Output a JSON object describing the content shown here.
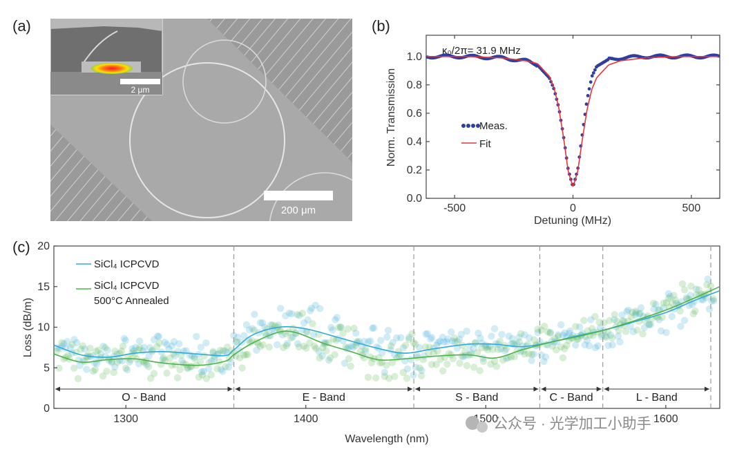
{
  "panel_labels": {
    "a": "(a)",
    "b": "(b)",
    "c": "(c)"
  },
  "panel_a": {
    "inset_scale_label": "2 μm",
    "scale_label": "200 μm"
  },
  "chart_data": [
    {
      "panel": "b",
      "type": "line",
      "annotation": "κ₀/2π= 31.9 MHz",
      "xlabel": "Detuning (MHz)",
      "ylabel": "Norm. Transmission",
      "xlim": [
        -620,
        620
      ],
      "ylim": [
        0.0,
        1.15
      ],
      "xticks": [
        -500,
        0,
        500
      ],
      "yticks": [
        0.0,
        0.2,
        0.4,
        0.6,
        0.8,
        1.0
      ],
      "legend": [
        "Meas.",
        "Fit"
      ],
      "series": [
        {
          "name": "Meas.",
          "style": "dots",
          "color": "#2e3f9e",
          "x": [
            -600,
            -450,
            -300,
            -200,
            -150,
            -100,
            -80,
            -60,
            -40,
            -20,
            0,
            20,
            40,
            60,
            80,
            100,
            150,
            200,
            300,
            450,
            600
          ],
          "y": [
            1.0,
            1.0,
            0.99,
            0.97,
            0.94,
            0.85,
            0.77,
            0.64,
            0.44,
            0.2,
            0.08,
            0.2,
            0.46,
            0.7,
            0.86,
            0.93,
            0.98,
            0.99,
            1.0,
            1.0,
            1.0
          ]
        },
        {
          "name": "Fit",
          "style": "line",
          "color": "#e8323c",
          "x": [
            -600,
            -450,
            -300,
            -200,
            -150,
            -100,
            -80,
            -60,
            -40,
            -20,
            0,
            20,
            40,
            60,
            80,
            100,
            150,
            200,
            300,
            450,
            600
          ],
          "y": [
            1.0,
            1.0,
            0.99,
            0.97,
            0.95,
            0.86,
            0.78,
            0.64,
            0.43,
            0.19,
            0.08,
            0.19,
            0.42,
            0.63,
            0.77,
            0.85,
            0.94,
            0.97,
            0.99,
            1.0,
            1.0
          ]
        }
      ]
    },
    {
      "panel": "c",
      "type": "scatter",
      "xlabel": "Wavelength (nm)",
      "ylabel": "Loss (dB/m)",
      "xlim": [
        1260,
        1630
      ],
      "ylim": [
        0,
        20
      ],
      "xticks": [
        1300,
        1400,
        1500,
        1600
      ],
      "yticks": [
        0,
        5,
        10,
        15,
        20
      ],
      "legend": [
        "SiCl₄ ICPCVD",
        "SiCl₄ ICPCVD",
        "500°C Annealed"
      ],
      "band_edges": [
        1260,
        1360,
        1460,
        1530,
        1565,
        1625
      ],
      "bands": [
        {
          "label": "O - Band",
          "from": 1260,
          "to": 1360
        },
        {
          "label": "E - Band",
          "from": 1360,
          "to": 1460
        },
        {
          "label": "S - Band",
          "from": 1460,
          "to": 1530
        },
        {
          "label": "C - Band",
          "from": 1530,
          "to": 1565
        },
        {
          "label": "L - Band",
          "from": 1565,
          "to": 1625
        }
      ],
      "series": [
        {
          "name": "SiCl₄ ICPCVD",
          "color": "#31a9d6",
          "x": [
            1260,
            1275,
            1290,
            1305,
            1320,
            1340,
            1355,
            1360,
            1370,
            1385,
            1400,
            1420,
            1440,
            1455,
            1470,
            1490,
            1505,
            1520,
            1535,
            1550,
            1565,
            1580,
            1600,
            1615,
            1630
          ],
          "y": [
            7.8,
            6.6,
            6.3,
            6.8,
            7.0,
            6.7,
            6.5,
            7.2,
            9.0,
            10.0,
            9.8,
            8.6,
            7.4,
            6.8,
            7.3,
            7.9,
            7.9,
            7.6,
            8.1,
            8.9,
            9.6,
            10.5,
            11.8,
            13.2,
            14.5
          ]
        },
        {
          "name": "SiCl₄ ICPCVD 500°C Annealed",
          "color": "#4cb34a",
          "x": [
            1260,
            1275,
            1290,
            1305,
            1320,
            1340,
            1355,
            1360,
            1370,
            1385,
            1395,
            1410,
            1425,
            1440,
            1455,
            1470,
            1490,
            1505,
            1520,
            1535,
            1550,
            1565,
            1580,
            1600,
            1615,
            1630
          ],
          "y": [
            6.7,
            5.7,
            6.0,
            6.1,
            5.6,
            5.3,
            5.8,
            6.6,
            8.0,
            9.4,
            9.3,
            8.0,
            7.0,
            6.0,
            6.1,
            6.4,
            6.6,
            6.2,
            7.2,
            8.1,
            8.8,
            9.6,
            10.6,
            12.1,
            13.5,
            15.0
          ]
        }
      ]
    }
  ],
  "watermark": "公众号 · 光学加工小助手"
}
